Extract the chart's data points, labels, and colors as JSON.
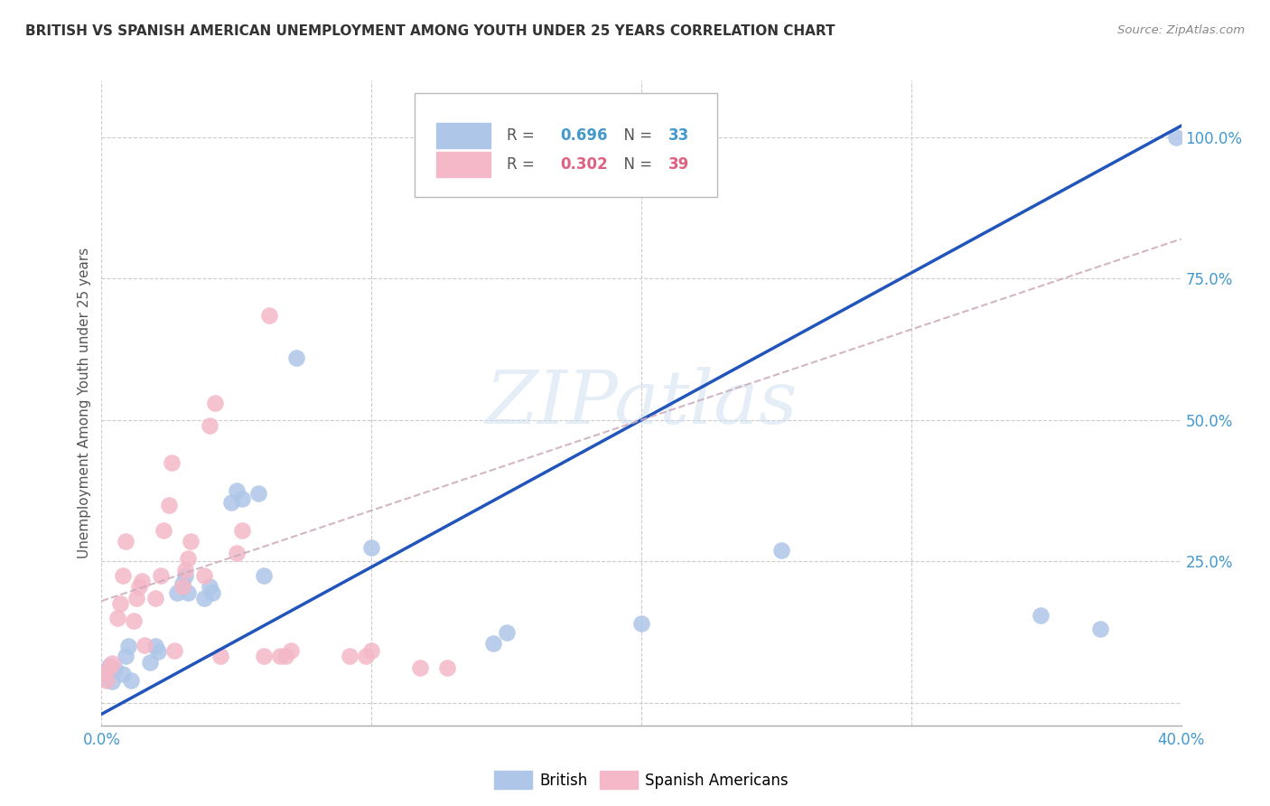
{
  "title": "BRITISH VS SPANISH AMERICAN UNEMPLOYMENT AMONG YOUTH UNDER 25 YEARS CORRELATION CHART",
  "source": "Source: ZipAtlas.com",
  "ylabel": "Unemployment Among Youth under 25 years",
  "xlim": [
    0.0,
    0.4
  ],
  "ylim": [
    -0.04,
    1.1
  ],
  "watermark": "ZIPatlas",
  "british_R": 0.696,
  "british_N": 33,
  "spanish_R": 0.302,
  "spanish_N": 39,
  "british_color": "#aec6e8",
  "spanish_color": "#f4b8c8",
  "british_line_color": "#2255bb",
  "spanish_line_color": "#ccaabb",
  "british_line": {
    "x0": 0.0,
    "y0": -0.02,
    "x1": 0.4,
    "y1": 1.02
  },
  "spanish_line": {
    "x0": 0.0,
    "y0": 0.18,
    "x1": 0.4,
    "y1": 0.82
  },
  "british_scatter": [
    [
      0.001,
      0.055
    ],
    [
      0.002,
      0.042
    ],
    [
      0.003,
      0.065
    ],
    [
      0.004,
      0.038
    ],
    [
      0.005,
      0.06
    ],
    [
      0.008,
      0.05
    ],
    [
      0.009,
      0.082
    ],
    [
      0.01,
      0.1
    ],
    [
      0.011,
      0.04
    ],
    [
      0.018,
      0.072
    ],
    [
      0.02,
      0.1
    ],
    [
      0.021,
      0.09
    ],
    [
      0.028,
      0.195
    ],
    [
      0.03,
      0.21
    ],
    [
      0.031,
      0.225
    ],
    [
      0.032,
      0.195
    ],
    [
      0.038,
      0.185
    ],
    [
      0.04,
      0.205
    ],
    [
      0.041,
      0.195
    ],
    [
      0.048,
      0.355
    ],
    [
      0.05,
      0.375
    ],
    [
      0.052,
      0.36
    ],
    [
      0.058,
      0.37
    ],
    [
      0.06,
      0.225
    ],
    [
      0.072,
      0.61
    ],
    [
      0.1,
      0.275
    ],
    [
      0.145,
      0.105
    ],
    [
      0.15,
      0.125
    ],
    [
      0.2,
      0.14
    ],
    [
      0.252,
      0.27
    ],
    [
      0.348,
      0.155
    ],
    [
      0.37,
      0.13
    ],
    [
      0.398,
      1.0
    ]
  ],
  "spanish_scatter": [
    [
      0.001,
      0.052
    ],
    [
      0.002,
      0.04
    ],
    [
      0.003,
      0.062
    ],
    [
      0.004,
      0.07
    ],
    [
      0.006,
      0.15
    ],
    [
      0.007,
      0.175
    ],
    [
      0.008,
      0.225
    ],
    [
      0.009,
      0.285
    ],
    [
      0.012,
      0.145
    ],
    [
      0.013,
      0.185
    ],
    [
      0.014,
      0.205
    ],
    [
      0.015,
      0.215
    ],
    [
      0.02,
      0.185
    ],
    [
      0.022,
      0.225
    ],
    [
      0.023,
      0.305
    ],
    [
      0.025,
      0.35
    ],
    [
      0.026,
      0.425
    ],
    [
      0.03,
      0.205
    ],
    [
      0.031,
      0.235
    ],
    [
      0.032,
      0.255
    ],
    [
      0.033,
      0.285
    ],
    [
      0.038,
      0.225
    ],
    [
      0.04,
      0.49
    ],
    [
      0.042,
      0.53
    ],
    [
      0.05,
      0.265
    ],
    [
      0.052,
      0.305
    ],
    [
      0.06,
      0.082
    ],
    [
      0.062,
      0.685
    ],
    [
      0.068,
      0.082
    ],
    [
      0.07,
      0.092
    ],
    [
      0.098,
      0.082
    ],
    [
      0.1,
      0.092
    ],
    [
      0.118,
      0.062
    ],
    [
      0.128,
      0.062
    ],
    [
      0.016,
      0.102
    ],
    [
      0.027,
      0.092
    ],
    [
      0.044,
      0.082
    ],
    [
      0.066,
      0.082
    ],
    [
      0.092,
      0.082
    ]
  ]
}
